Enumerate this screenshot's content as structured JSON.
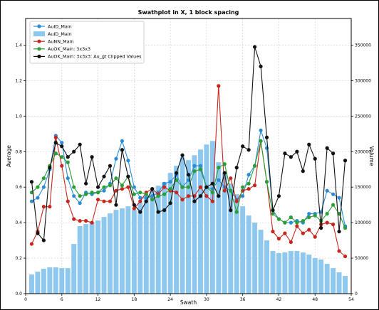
{
  "chart_data": {
    "type": "line",
    "title": "Swathplot in X, 1 block spacing",
    "xlabel": "Swath",
    "ylabel": "Average",
    "y2label": "Volume",
    "xlim": [
      0,
      54
    ],
    "ylim": [
      0,
      1.55
    ],
    "y2lim": [
      0,
      387500
    ],
    "xticks": [
      0,
      6,
      12,
      18,
      24,
      30,
      36,
      42,
      48,
      54
    ],
    "yticks": [
      0.0,
      0.2,
      0.4,
      0.6,
      0.8,
      1.0,
      1.2,
      1.4
    ],
    "y2ticks": [
      0,
      50000,
      100000,
      150000,
      200000,
      250000,
      300000,
      350000
    ],
    "grid": true,
    "legend_position": "top-left",
    "x": [
      1,
      2,
      3,
      4,
      5,
      6,
      7,
      8,
      9,
      10,
      11,
      12,
      13,
      14,
      15,
      16,
      17,
      18,
      19,
      20,
      21,
      22,
      23,
      24,
      25,
      26,
      27,
      28,
      29,
      30,
      31,
      32,
      33,
      34,
      35,
      36,
      37,
      38,
      39,
      40,
      41,
      42,
      43,
      44,
      45,
      46,
      47,
      48,
      49,
      50,
      51,
      52,
      53
    ],
    "series": [
      {
        "name": "AuID_Main",
        "kind": "line",
        "axis": "left",
        "color": "#2b8cd6",
        "values": [
          0.52,
          0.54,
          0.6,
          0.7,
          0.89,
          0.85,
          0.65,
          0.55,
          0.51,
          0.57,
          0.56,
          0.57,
          0.58,
          0.62,
          0.76,
          0.86,
          0.75,
          0.6,
          0.54,
          0.54,
          0.55,
          0.57,
          0.62,
          0.63,
          0.67,
          0.6,
          0.64,
          0.72,
          0.72,
          0.6,
          0.59,
          0.64,
          0.6,
          0.58,
          0.53,
          0.55,
          0.67,
          0.72,
          0.92,
          0.82,
          0.47,
          0.42,
          0.4,
          0.4,
          0.41,
          0.4,
          0.45,
          0.45,
          0.46,
          0.58,
          0.56,
          0.54,
          0.38
        ]
      },
      {
        "name": "AuID_Main",
        "kind": "bar",
        "axis": "right",
        "color": "#8ec8ef",
        "values": [
          27000,
          31000,
          35000,
          37000,
          37000,
          36000,
          36000,
          70000,
          95000,
          98000,
          100000,
          103000,
          108000,
          113000,
          118000,
          120000,
          123000,
          118000,
          128000,
          138000,
          145000,
          152000,
          157000,
          170000,
          180000,
          192000,
          188000,
          195000,
          203000,
          210000,
          215000,
          185000,
          170000,
          155000,
          140000,
          123000,
          110000,
          100000,
          90000,
          75000,
          60000,
          57000,
          58000,
          60000,
          60000,
          58000,
          55000,
          50000,
          48000,
          42000,
          36000,
          30000,
          25000
        ]
      },
      {
        "name": "AuNN_Main",
        "kind": "line",
        "axis": "left",
        "color": "#c8261c",
        "values": [
          0.28,
          0.35,
          0.49,
          0.49,
          0.88,
          0.72,
          0.52,
          0.42,
          0.41,
          0.41,
          0.4,
          0.53,
          0.52,
          0.52,
          0.58,
          0.59,
          0.6,
          0.48,
          0.52,
          0.57,
          0.59,
          0.56,
          0.6,
          0.58,
          0.57,
          0.53,
          0.55,
          0.55,
          0.6,
          0.55,
          0.52,
          1.17,
          0.58,
          0.65,
          0.52,
          0.58,
          0.59,
          0.61,
          0.86,
          0.63,
          0.35,
          0.31,
          0.34,
          0.29,
          0.38,
          0.34,
          0.36,
          0.32,
          0.39,
          0.4,
          0.39,
          0.24,
          0.21
        ]
      },
      {
        "name": "AuOK_Main: 3x3x3",
        "kind": "line",
        "axis": "left",
        "color": "#2a9d35",
        "values": [
          0.57,
          0.6,
          0.65,
          0.72,
          0.79,
          0.77,
          0.74,
          0.6,
          0.55,
          0.56,
          0.57,
          0.57,
          0.6,
          0.61,
          0.65,
          0.61,
          0.66,
          0.56,
          0.57,
          0.56,
          0.53,
          0.55,
          0.56,
          0.59,
          0.64,
          0.6,
          0.6,
          0.69,
          0.7,
          0.6,
          0.57,
          0.71,
          0.73,
          0.58,
          0.46,
          0.6,
          0.62,
          0.72,
          0.86,
          0.63,
          0.45,
          0.42,
          0.4,
          0.43,
          0.4,
          0.41,
          0.43,
          0.44,
          0.41,
          0.45,
          0.5,
          0.45,
          0.37
        ]
      },
      {
        "name": "AuOK_Main: 3x3x3: Au_gt Clipped Values",
        "kind": "line",
        "axis": "left",
        "color": "#111111",
        "values": [
          0.63,
          0.34,
          0.3,
          0.71,
          0.85,
          0.83,
          0.77,
          0.8,
          0.84,
          0.62,
          0.77,
          0.6,
          0.66,
          0.72,
          0.5,
          0.81,
          0.66,
          0.5,
          0.46,
          0.52,
          0.59,
          0.46,
          0.47,
          0.51,
          0.68,
          0.78,
          0.67,
          0.52,
          0.55,
          0.6,
          0.62,
          0.55,
          0.68,
          0.47,
          0.71,
          0.83,
          0.81,
          1.39,
          1.28,
          0.88,
          0.47,
          0.55,
          0.79,
          0.77,
          0.8,
          0.69,
          0.84,
          0.76,
          0.37,
          0.82,
          0.79,
          0.35,
          0.75
        ]
      }
    ]
  }
}
